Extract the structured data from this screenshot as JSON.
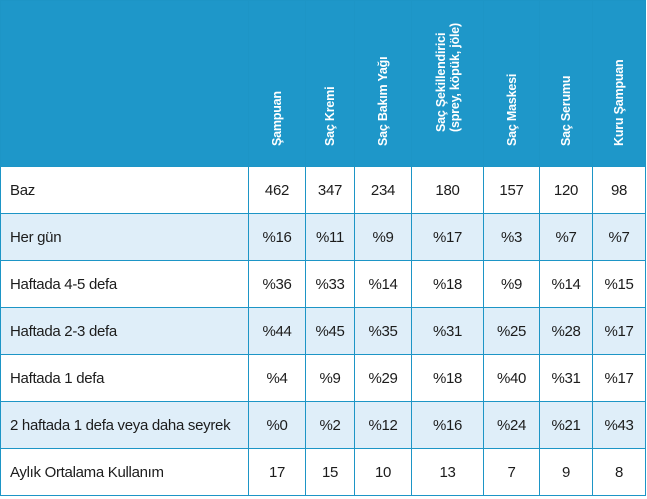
{
  "columns": [
    {
      "label": "Şampuan"
    },
    {
      "label": "Saç Kremi"
    },
    {
      "label": "Saç Bakım Yağı"
    },
    {
      "label": "Saç Şekillendirici",
      "label2": "(sprey, köpük, jöle)"
    },
    {
      "label": "Saç Maskesi"
    },
    {
      "label": "Saç Serumu"
    },
    {
      "label": "Kuru Şampuan"
    }
  ],
  "rows": [
    {
      "label": "Baz",
      "values": [
        "462",
        "347",
        "234",
        "180",
        "157",
        "120",
        "98"
      ]
    },
    {
      "label": "Her gün",
      "values": [
        "%16",
        "%11",
        "%9",
        "%17",
        "%3",
        "%7",
        "%7"
      ]
    },
    {
      "label": "Haftada 4-5 defa",
      "values": [
        "%36",
        "%33",
        "%14",
        "%18",
        "%9",
        "%14",
        "%15"
      ]
    },
    {
      "label": "Haftada 2-3 defa",
      "values": [
        "%44",
        "%45",
        "%35",
        "%31",
        "%25",
        "%28",
        "%17"
      ]
    },
    {
      "label": "Haftada 1 defa",
      "values": [
        "%4",
        "%9",
        "%29",
        "%18",
        "%40",
        "%31",
        "%17"
      ]
    },
    {
      "label": "2 haftada 1 defa veya daha seyrek",
      "values": [
        "%0",
        "%2",
        "%12",
        "%16",
        "%24",
        "%21",
        "%43"
      ]
    },
    {
      "label": "Aylık Ortalama Kullanım",
      "values": [
        "17",
        "15",
        "10",
        "13",
        "7",
        "9",
        "8"
      ]
    }
  ],
  "colors": {
    "header_bg": "#1e97c9",
    "border": "#1d95c6",
    "row_shade": "#dfeef9"
  }
}
